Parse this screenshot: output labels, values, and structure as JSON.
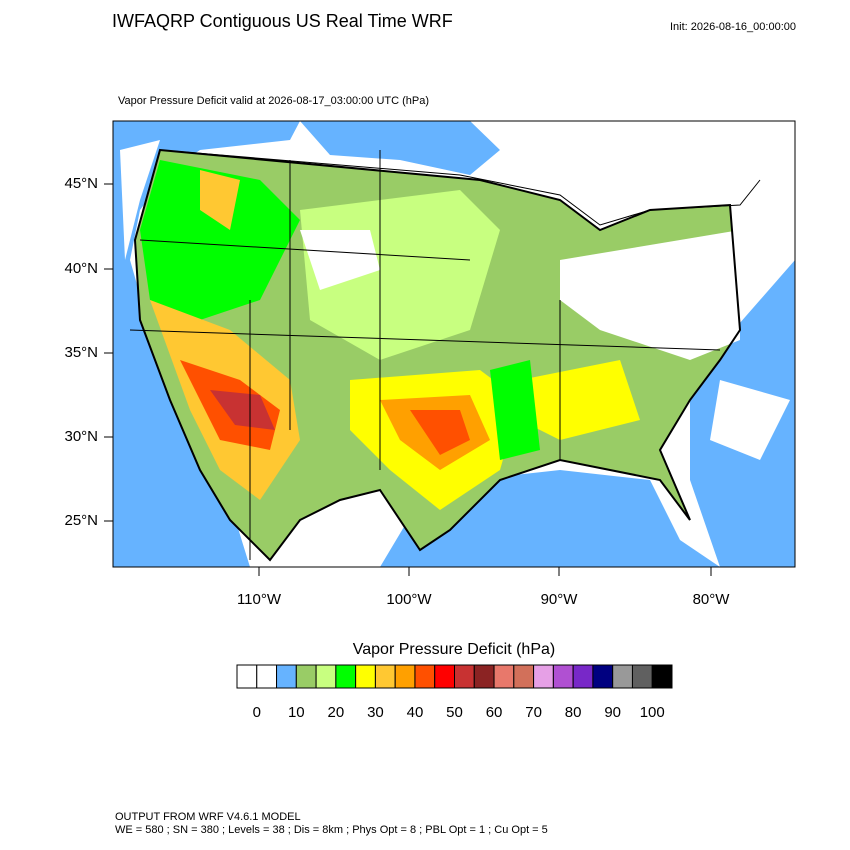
{
  "header": {
    "title": "IWFAQRP Contiguous US Real Time WRF",
    "init": "Init: 2026-08-16_00:00:00"
  },
  "map": {
    "subtitle": "Vapor Pressure Deficit valid at 2026-08-17_03:00:00 UTC   (hPa)",
    "lat_labels": [
      "45°N",
      "40°N",
      "35°N",
      "30°N",
      "25°N"
    ],
    "lon_labels": [
      "110°W",
      "100°W",
      "90°W",
      "80°W"
    ]
  },
  "colorbar": {
    "title": "Vapor Pressure Deficit  (hPa)",
    "colors": [
      "#ffffff",
      "#ffffff",
      "#66b3ff",
      "#99cc66",
      "#c8ff80",
      "#00ff00",
      "#ffff00",
      "#ffc832",
      "#ffa000",
      "#ff5000",
      "#ff0000",
      "#c83232",
      "#8b2323",
      "#e8786b",
      "#d2705a",
      "#e6a0e6",
      "#b050d2",
      "#7828c8",
      "#000080",
      "#999999",
      "#606060",
      "#000000"
    ],
    "ticks": [
      0,
      10,
      20,
      30,
      40,
      50,
      60,
      70,
      80,
      90,
      100
    ]
  },
  "footer": {
    "line1": "OUTPUT FROM WRF V4.6.1 MODEL",
    "line2": "WE = 580 ; SN = 380 ; Levels = 38 ; Dis = 8km ; Phys Opt = 8 ; PBL Opt = 1 ; Cu Opt = 5"
  }
}
